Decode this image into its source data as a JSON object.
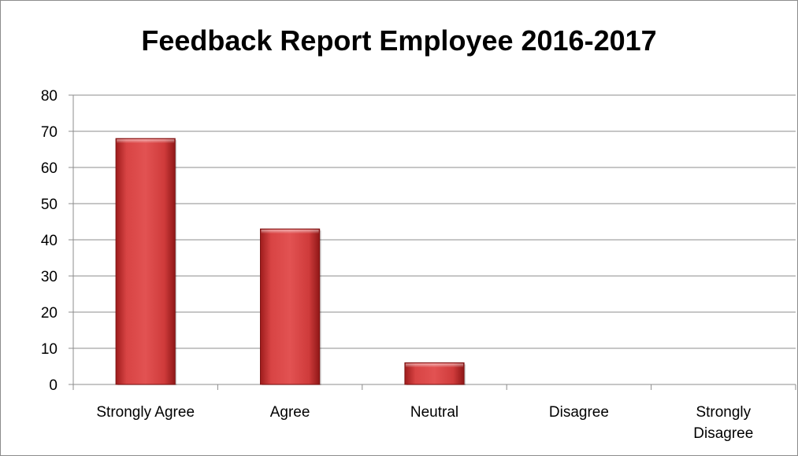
{
  "chart_data": {
    "type": "bar",
    "title": "Feedback Report Employee 2016-2017",
    "categories": [
      "Strongly Agree",
      "Agree",
      "Neutral",
      "Disagree",
      "Strongly Disagree"
    ],
    "category_lines": [
      [
        "Strongly Agree"
      ],
      [
        "Agree"
      ],
      [
        "Neutral"
      ],
      [
        "Disagree"
      ],
      [
        "Strongly",
        "Disagree"
      ]
    ],
    "values": [
      68,
      43,
      6,
      0,
      0
    ],
    "ylim": [
      0,
      80
    ],
    "yticks": [
      "0",
      "10",
      "20",
      "30",
      "40",
      "50",
      "60",
      "70",
      "80"
    ],
    "grid": true,
    "bar_color": "#d23a3a"
  }
}
